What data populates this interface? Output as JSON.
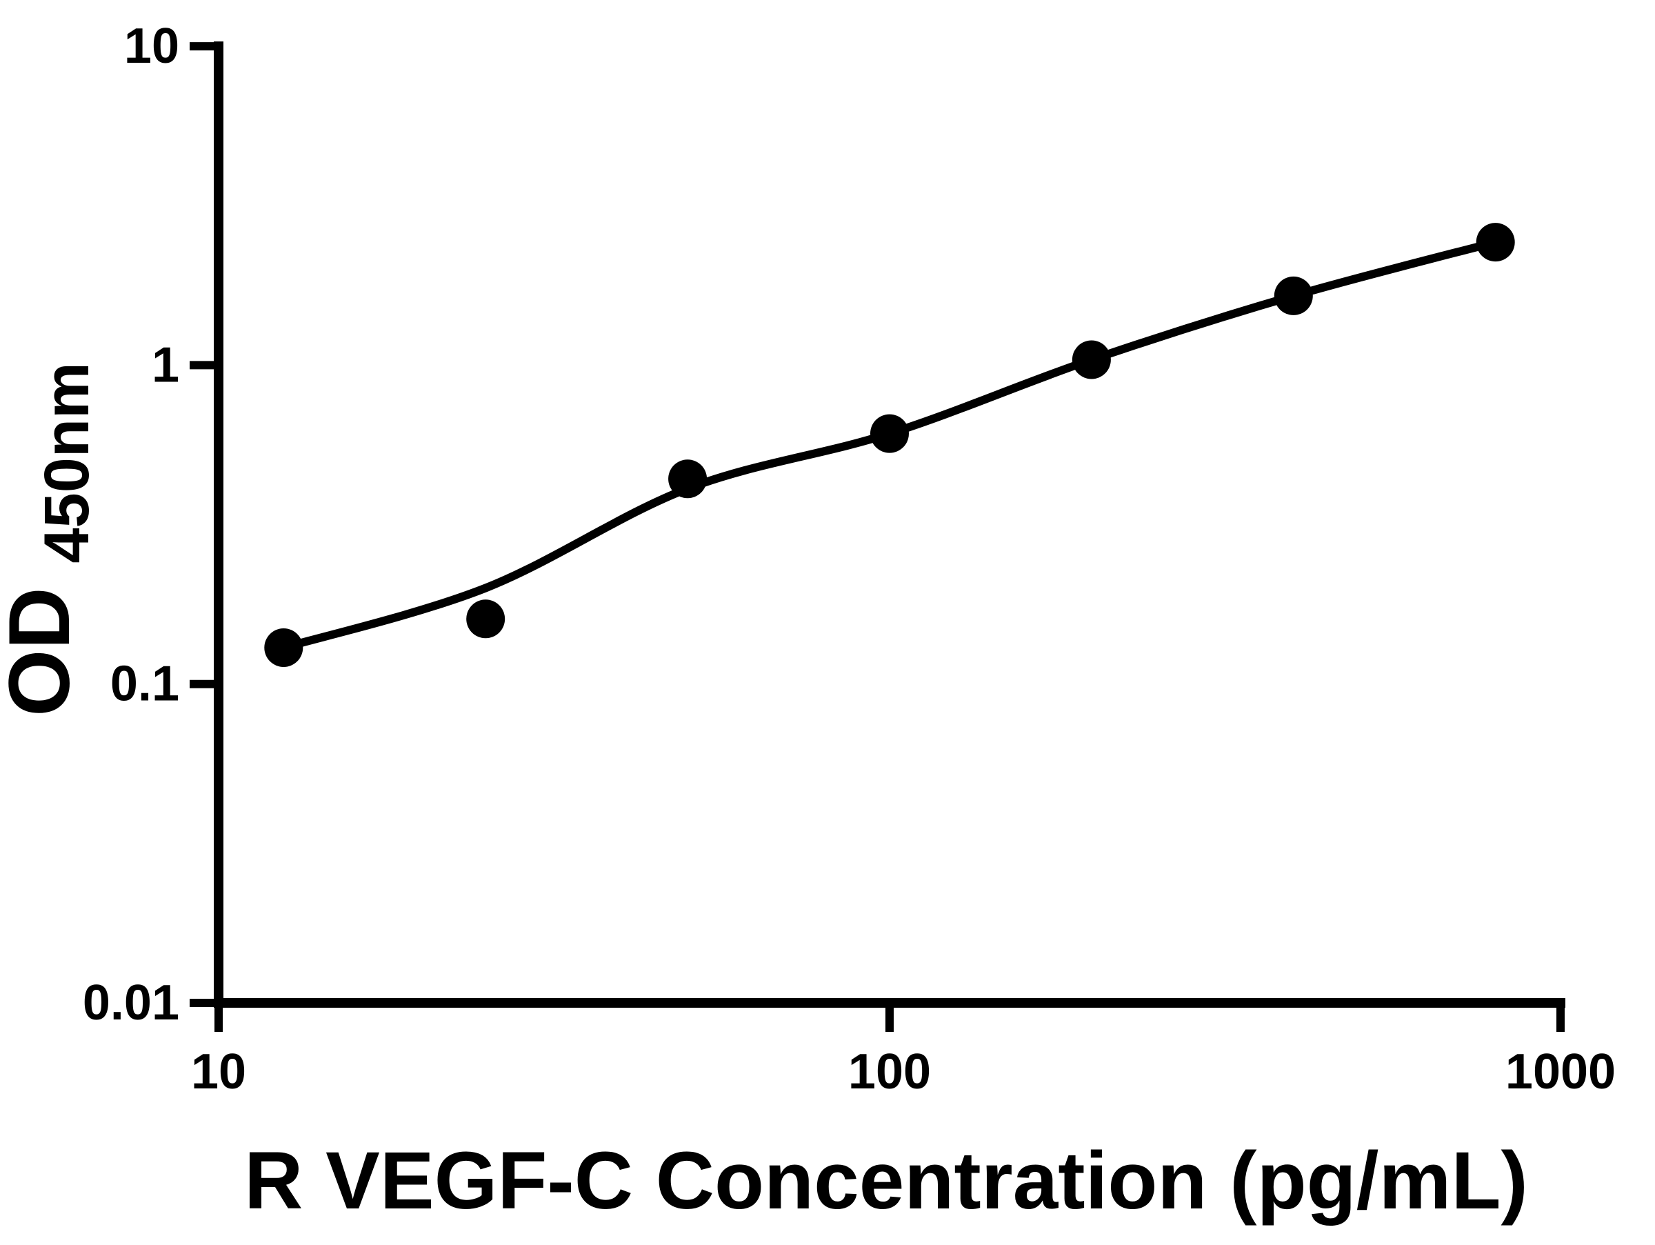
{
  "chart_data": {
    "type": "scatter",
    "title": "",
    "xlabel": "R VEGF-C Concentration (pg/mL)",
    "ylabel_main": "OD",
    "ylabel_sub": "450nm",
    "xscale": "log",
    "yscale": "log",
    "xlim": [
      10,
      1000
    ],
    "ylim": [
      0.01,
      10
    ],
    "grid": false,
    "legend_position": "none",
    "x_ticks": [
      {
        "v": 10,
        "label": "10"
      },
      {
        "v": 100,
        "label": "100"
      },
      {
        "v": 1000,
        "label": "1000"
      }
    ],
    "y_ticks": [
      {
        "v": 0.01,
        "label": "0.01"
      },
      {
        "v": 0.1,
        "label": "0.1"
      },
      {
        "v": 1,
        "label": "1"
      },
      {
        "v": 10,
        "label": "10"
      }
    ],
    "series": [
      {
        "name": "standard-points",
        "type": "scatter",
        "x": [
          12.5,
          25,
          50,
          100,
          200,
          400,
          800
        ],
        "y": [
          0.13,
          0.16,
          0.44,
          0.61,
          1.04,
          1.65,
          2.43
        ]
      },
      {
        "name": "fit-curve",
        "type": "line",
        "x": [
          12.5,
          25,
          50,
          100,
          200,
          400,
          800
        ],
        "y": [
          0.13,
          0.2,
          0.41,
          0.61,
          1.04,
          1.65,
          2.43
        ]
      }
    ],
    "colors": {
      "points": "#000000",
      "line": "#000000",
      "axis": "#000000",
      "background": "#ffffff"
    }
  }
}
